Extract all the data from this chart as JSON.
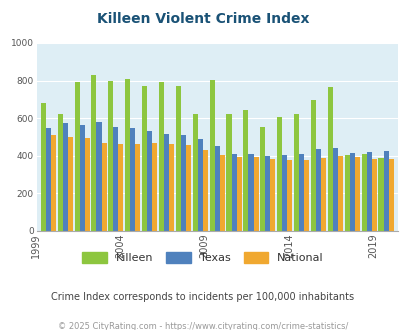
{
  "title": "Killeen Violent Crime Index",
  "years": [
    1999,
    2000,
    2001,
    2002,
    2003,
    2004,
    2005,
    2006,
    2007,
    2008,
    2009,
    2010,
    2011,
    2012,
    2013,
    2014,
    2015,
    2016,
    2017,
    2018,
    2019
  ],
  "killeen": [
    680,
    620,
    790,
    830,
    795,
    810,
    770,
    790,
    770,
    620,
    805,
    620,
    645,
    555,
    605,
    620,
    695,
    765,
    405,
    410,
    390
  ],
  "texas": [
    550,
    575,
    565,
    580,
    555,
    545,
    530,
    515,
    510,
    490,
    450,
    410,
    410,
    400,
    405,
    410,
    435,
    440,
    415,
    420,
    425
  ],
  "national": [
    510,
    500,
    495,
    470,
    465,
    465,
    470,
    465,
    455,
    430,
    405,
    395,
    395,
    385,
    380,
    375,
    390,
    400,
    395,
    385,
    385
  ],
  "killeen_color": "#8dc63f",
  "texas_color": "#4f81bd",
  "national_color": "#f0a830",
  "bg_color": "#deeef5",
  "ylim": [
    0,
    1000
  ],
  "yticks": [
    0,
    200,
    400,
    600,
    800,
    1000
  ],
  "xtick_years": [
    1999,
    2004,
    2009,
    2014,
    2019
  ],
  "subtitle": "Crime Index corresponds to incidents per 100,000 inhabitants",
  "footer": "© 2025 CityRating.com - https://www.cityrating.com/crime-statistics/",
  "title_color": "#1a5276",
  "subtitle_color": "#444444",
  "footer_color": "#999999",
  "title_fontsize": 10,
  "subtitle_fontsize": 7,
  "footer_fontsize": 6
}
